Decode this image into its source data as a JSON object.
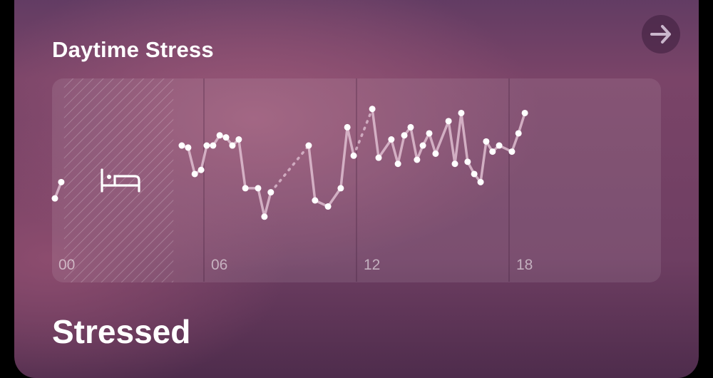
{
  "card": {
    "title": "Daytime Stress",
    "status": "Stressed",
    "open_icon": "arrow-right-icon",
    "sleep_icon": "bed-icon"
  },
  "colors": {
    "line": "#e3c4d6",
    "point": "#ffffff",
    "background": "#7a4468"
  },
  "chart_data": {
    "type": "line",
    "xlabel": "",
    "ylabel": "",
    "x_ticks": [
      "00",
      "06",
      "12",
      "18"
    ],
    "xlim": [
      0,
      24
    ],
    "ylim": [
      0,
      100
    ],
    "grid": "vertical",
    "sleep_period_hours": [
      0.5,
      4.8
    ],
    "gaps_dotted": [
      [
        8.63,
        10.12
      ],
      [
        11.89,
        12.62
      ]
    ],
    "segments": [
      [
        [
          0.14,
          41
        ],
        [
          0.39,
          49
        ]
      ],
      [
        [
          5.13,
          67
        ],
        [
          5.38,
          66
        ],
        [
          5.64,
          53
        ],
        [
          5.89,
          55
        ],
        [
          6.11,
          67
        ],
        [
          6.36,
          67
        ],
        [
          6.62,
          72
        ],
        [
          6.87,
          71
        ],
        [
          7.12,
          67
        ],
        [
          7.37,
          70
        ],
        [
          7.63,
          46
        ],
        [
          8.13,
          46
        ],
        [
          8.38,
          32
        ],
        [
          8.63,
          44
        ]
      ],
      [
        [
          10.12,
          67
        ],
        [
          10.37,
          40
        ],
        [
          10.88,
          37
        ],
        [
          11.38,
          46
        ],
        [
          11.64,
          76
        ],
        [
          11.89,
          62
        ]
      ],
      [
        [
          12.62,
          85
        ],
        [
          12.87,
          61
        ],
        [
          13.37,
          70
        ],
        [
          13.63,
          58
        ],
        [
          13.88,
          72
        ],
        [
          14.13,
          76
        ],
        [
          14.38,
          60
        ],
        [
          14.61,
          67
        ],
        [
          14.86,
          73
        ],
        [
          15.11,
          63
        ],
        [
          15.62,
          79
        ],
        [
          15.87,
          58
        ],
        [
          16.12,
          83
        ],
        [
          16.37,
          59
        ],
        [
          16.63,
          53
        ],
        [
          16.88,
          49
        ],
        [
          17.1,
          69
        ],
        [
          17.35,
          64
        ],
        [
          17.61,
          67
        ],
        [
          18.11,
          64
        ],
        [
          18.37,
          73
        ],
        [
          18.62,
          83
        ]
      ]
    ]
  }
}
